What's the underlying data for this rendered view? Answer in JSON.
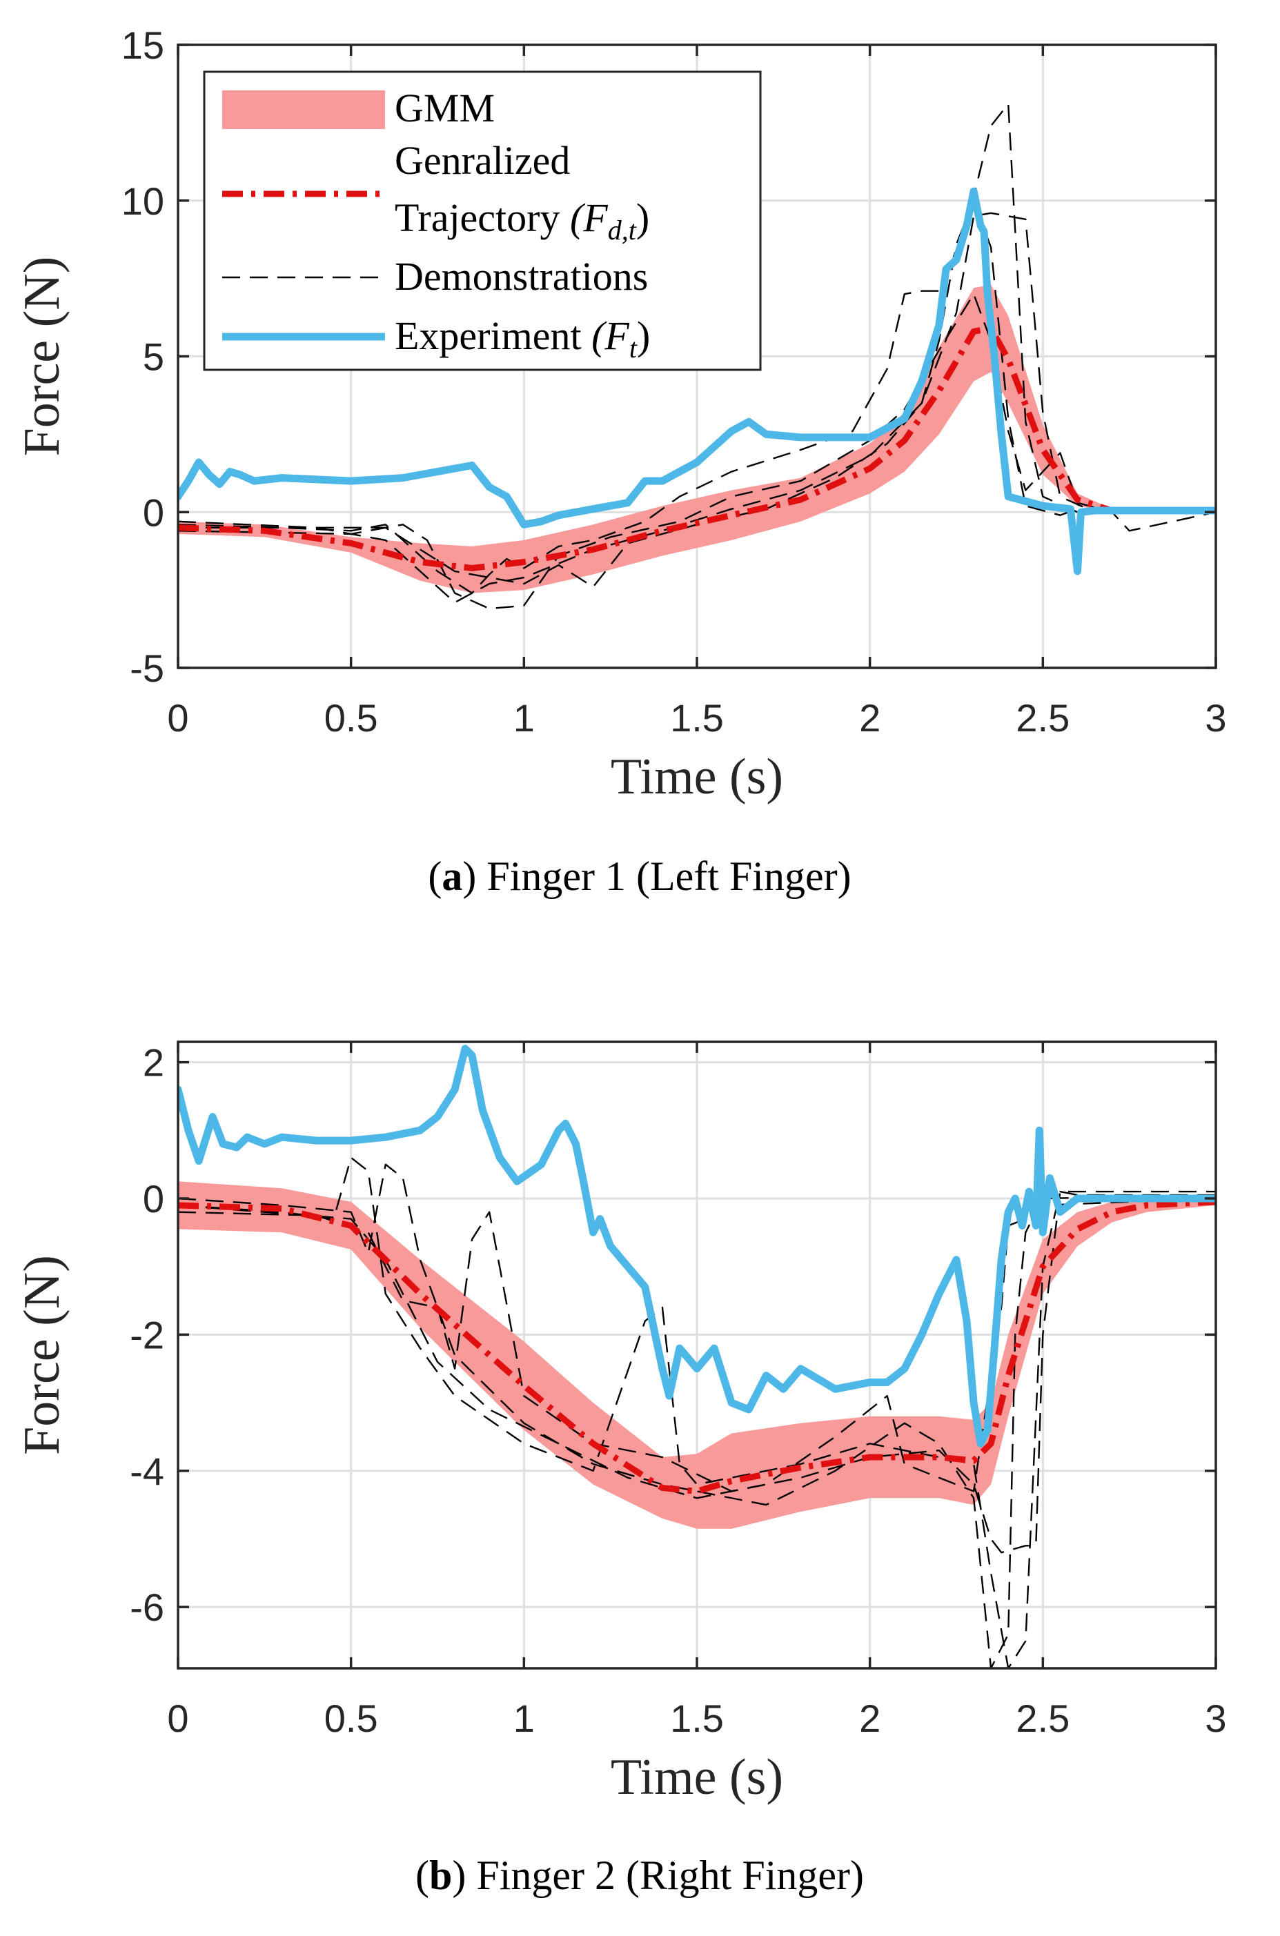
{
  "chart_data": [
    {
      "type": "line",
      "panel_label": "a",
      "caption": "Finger 1 (Left Finger)",
      "xlabel": "Time (s)",
      "ylabel": "Force (N)",
      "xlim": [
        0,
        3
      ],
      "ylim": [
        -5,
        15
      ],
      "xticks": [
        0,
        0.5,
        1,
        1.5,
        2,
        2.5,
        3
      ],
      "xtick_labels": [
        "0",
        "0.5",
        "1",
        "1.5",
        "2",
        "2.5",
        "3"
      ],
      "yticks": [
        -5,
        0,
        5,
        10,
        15
      ],
      "ytick_labels": [
        "-5",
        "0",
        "5",
        "10",
        "15"
      ],
      "grid": true,
      "legend": {
        "position": "top-left",
        "entries": [
          {
            "label": "GMM",
            "style": "band"
          },
          {
            "label": "Genralized",
            "label2": "Trajectory",
            "sym": "(F",
            "sub": "d,t",
            "close": ")",
            "style": "dashdot"
          },
          {
            "label": "Demonstrations",
            "style": "dashed"
          },
          {
            "label": "Experiment",
            "sym": "(F",
            "sub": "t",
            "close": ")",
            "style": "solid"
          }
        ]
      },
      "series": [
        {
          "name": "GMM",
          "type": "band",
          "color": "#f89a9a",
          "x": [
            0,
            0.25,
            0.5,
            0.7,
            0.85,
            1.0,
            1.2,
            1.4,
            1.6,
            1.8,
            2.0,
            2.1,
            2.2,
            2.3,
            2.35,
            2.4,
            2.5,
            2.6,
            2.7,
            3.0
          ],
          "lower": [
            -0.7,
            -0.8,
            -1.3,
            -2.2,
            -2.6,
            -2.5,
            -2.0,
            -1.4,
            -0.9,
            -0.3,
            0.6,
            1.3,
            2.5,
            4.2,
            4.5,
            3.5,
            1.2,
            0.2,
            0.0,
            0.0
          ],
          "upper": [
            -0.3,
            -0.4,
            -0.8,
            -1.0,
            -1.1,
            -0.9,
            -0.4,
            0.2,
            0.7,
            1.1,
            2.2,
            3.2,
            5.3,
            7.2,
            7.3,
            6.3,
            2.8,
            0.6,
            0.1,
            0.1
          ]
        },
        {
          "name": "Genralized Trajectory (F_d,t)",
          "type": "line",
          "color": "#e01010",
          "x": [
            0,
            0.25,
            0.5,
            0.7,
            0.85,
            1.0,
            1.2,
            1.4,
            1.6,
            1.8,
            2.0,
            2.1,
            2.2,
            2.3,
            2.35,
            2.4,
            2.5,
            2.6,
            2.7,
            3.0
          ],
          "y": [
            -0.5,
            -0.6,
            -1.0,
            -1.6,
            -1.8,
            -1.6,
            -1.2,
            -0.6,
            -0.1,
            0.4,
            1.4,
            2.3,
            3.9,
            5.8,
            5.9,
            4.9,
            2.0,
            0.4,
            0.05,
            0.05
          ]
        },
        {
          "name": "Demonstrations",
          "type": "line",
          "color": "#000000",
          "traces": [
            {
              "x": [
                0,
                0.3,
                0.5,
                0.6,
                0.65,
                0.75,
                0.85,
                0.9,
                0.95,
                1.0,
                1.1,
                1.2,
                1.35,
                1.45,
                1.6,
                1.8,
                1.95,
                2.05,
                2.1,
                2.15,
                2.2,
                2.28,
                2.35,
                2.4,
                2.45,
                2.5,
                2.6,
                2.75,
                3.0
              ],
              "y": [
                -0.4,
                -0.5,
                -0.6,
                -0.4,
                -0.9,
                -1.9,
                -2.6,
                -2.0,
                -1.5,
                -1.8,
                -1.1,
                -0.9,
                -0.3,
                0.5,
                1.3,
                2.0,
                2.6,
                4.6,
                7.0,
                7.1,
                7.1,
                9.2,
                12.4,
                13.1,
                2.9,
                0.5,
                0.0,
                0.0,
                0.0
              ]
            },
            {
              "x": [
                0,
                0.4,
                0.6,
                0.7,
                0.8,
                0.9,
                1.0,
                1.2,
                1.4,
                1.6,
                1.8,
                2.0,
                2.15,
                2.25,
                2.3,
                2.35,
                2.45,
                2.5,
                2.55,
                2.65,
                3.0
              ],
              "y": [
                -0.3,
                -0.5,
                -0.9,
                -1.9,
                -2.9,
                -2.3,
                -2.1,
                -1.2,
                -0.6,
                0.1,
                0.7,
                1.8,
                3.5,
                6.4,
                9.5,
                9.6,
                9.4,
                3.2,
                0.5,
                0.0,
                0.0
              ]
            },
            {
              "x": [
                0,
                0.5,
                0.65,
                0.72,
                0.8,
                0.9,
                1.0,
                1.1,
                1.25,
                1.45,
                1.6,
                1.8,
                2.0,
                2.1,
                2.2,
                2.3,
                2.35,
                2.4,
                2.45,
                2.55,
                2.6,
                2.7,
                2.75,
                3.0
              ],
              "y": [
                -0.6,
                -0.7,
                -0.4,
                -0.9,
                -2.6,
                -3.1,
                -3.0,
                -1.4,
                -0.8,
                -0.3,
                0.5,
                1.0,
                2.3,
                3.3,
                5.2,
                7.0,
                5.5,
                2.6,
                0.7,
                1.9,
                0.3,
                0.0,
                -0.6,
                0.0
              ]
            },
            {
              "x": [
                0,
                0.6,
                0.8,
                1.0,
                1.1,
                1.2,
                1.3,
                1.5,
                1.7,
                1.9,
                2.05,
                2.15,
                2.2,
                2.25,
                2.3,
                2.35,
                2.4,
                2.45,
                2.55,
                2.6,
                2.7,
                3.0
              ],
              "y": [
                -0.5,
                -0.5,
                -1.9,
                -2.3,
                -1.7,
                -2.4,
                -1.0,
                -0.4,
                0.1,
                1.1,
                2.2,
                3.5,
                5.5,
                8.6,
                10.0,
                8.5,
                3.0,
                0.2,
                -0.1,
                0.1,
                0.0,
                0.0
              ]
            }
          ]
        },
        {
          "name": "Experiment (F_t)",
          "type": "line",
          "color": "#4db8e8",
          "x": [
            0,
            0.03,
            0.06,
            0.09,
            0.12,
            0.15,
            0.18,
            0.22,
            0.3,
            0.5,
            0.65,
            0.8,
            0.85,
            0.9,
            0.95,
            1.0,
            1.05,
            1.1,
            1.2,
            1.3,
            1.35,
            1.4,
            1.5,
            1.6,
            1.65,
            1.7,
            1.8,
            2.0,
            2.1,
            2.15,
            2.2,
            2.22,
            2.25,
            2.28,
            2.3,
            2.32,
            2.33,
            2.34,
            2.36,
            2.38,
            2.4,
            2.5,
            2.58,
            2.6,
            2.61,
            2.65,
            3.0
          ],
          "y": [
            0.5,
            1.0,
            1.6,
            1.2,
            0.9,
            1.3,
            1.2,
            1.0,
            1.1,
            1.0,
            1.1,
            1.4,
            1.5,
            0.8,
            0.5,
            -0.4,
            -0.3,
            -0.1,
            0.1,
            0.3,
            1.0,
            1.0,
            1.6,
            2.6,
            2.9,
            2.5,
            2.4,
            2.4,
            3.0,
            4.2,
            6.0,
            7.8,
            8.1,
            9.2,
            10.3,
            9.2,
            9.0,
            7.0,
            5.0,
            2.5,
            0.5,
            0.2,
            0.1,
            -1.9,
            0.0,
            0.05,
            0.05
          ]
        }
      ]
    },
    {
      "type": "line",
      "panel_label": "b",
      "caption": "Finger 2 (Right Finger)",
      "xlabel": "Time (s)",
      "ylabel": "Force (N)",
      "xlim": [
        0,
        3
      ],
      "ylim": [
        -6.9,
        2.3
      ],
      "xticks": [
        0,
        0.5,
        1,
        1.5,
        2,
        2.5,
        3
      ],
      "xtick_labels": [
        "0",
        "0.5",
        "1",
        "1.5",
        "2",
        "2.5",
        "3"
      ],
      "yticks": [
        -6,
        -4,
        -2,
        0,
        2
      ],
      "ytick_labels": [
        "-6",
        "-4",
        "-2",
        "0",
        "2"
      ],
      "grid": true,
      "series": [
        {
          "name": "GMM",
          "type": "band",
          "color": "#f89a9a",
          "x": [
            0,
            0.3,
            0.5,
            0.7,
            1.0,
            1.2,
            1.4,
            1.5,
            1.6,
            1.8,
            2.0,
            2.2,
            2.3,
            2.35,
            2.4,
            2.5,
            2.6,
            2.7,
            2.8,
            3.0
          ],
          "lower": [
            -0.45,
            -0.5,
            -0.75,
            -1.9,
            -3.4,
            -4.2,
            -4.7,
            -4.85,
            -4.85,
            -4.6,
            -4.4,
            -4.4,
            -4.5,
            -4.2,
            -3.2,
            -1.4,
            -0.7,
            -0.35,
            -0.2,
            -0.1
          ],
          "upper": [
            0.25,
            0.15,
            -0.05,
            -0.9,
            -2.1,
            -3.0,
            -3.8,
            -3.75,
            -3.45,
            -3.3,
            -3.2,
            -3.2,
            -3.25,
            -3.0,
            -2.0,
            -0.6,
            -0.2,
            -0.05,
            0.0,
            0.0
          ]
        },
        {
          "name": "Genralized Trajectory (F_d,t)",
          "type": "line",
          "color": "#e01010",
          "x": [
            0,
            0.3,
            0.5,
            0.7,
            1.0,
            1.2,
            1.4,
            1.5,
            1.6,
            1.8,
            2.0,
            2.2,
            2.3,
            2.35,
            2.4,
            2.5,
            2.6,
            2.7,
            2.8,
            3.0
          ],
          "y": [
            -0.1,
            -0.15,
            -0.4,
            -1.4,
            -2.75,
            -3.6,
            -4.25,
            -4.3,
            -4.15,
            -3.95,
            -3.8,
            -3.8,
            -3.85,
            -3.6,
            -2.6,
            -1.0,
            -0.45,
            -0.2,
            -0.1,
            -0.05
          ]
        },
        {
          "name": "Demonstrations",
          "type": "line",
          "color": "#000000",
          "traces": [
            {
              "x": [
                0,
                0.3,
                0.45,
                0.5,
                0.55,
                0.6,
                0.7,
                0.8,
                1.0,
                1.2,
                1.35,
                1.4,
                1.45,
                1.5,
                1.6,
                1.8,
                2.0,
                2.2,
                2.3,
                2.35,
                2.4,
                2.45,
                2.5,
                2.55,
                2.6,
                3.0
              ],
              "y": [
                -0.1,
                -0.2,
                -0.3,
                0.6,
                0.4,
                -1.4,
                -2.2,
                -2.9,
                -3.6,
                -4.0,
                -1.8,
                -1.6,
                -3.9,
                -4.2,
                -4.1,
                -3.9,
                -3.6,
                -3.8,
                -3.9,
                -5.5,
                -6.9,
                -6.5,
                -1.0,
                0.1,
                0.05,
                0.05
              ]
            },
            {
              "x": [
                0,
                0.3,
                0.5,
                0.55,
                0.6,
                0.65,
                0.7,
                0.8,
                1.0,
                1.2,
                1.4,
                1.5,
                1.7,
                1.9,
                2.1,
                2.2,
                2.3,
                2.35,
                2.4,
                2.42,
                2.45,
                2.5,
                3.0
              ],
              "y": [
                0.0,
                -0.1,
                -0.2,
                -0.8,
                0.5,
                0.3,
                -0.9,
                -2.3,
                -3.3,
                -3.9,
                -4.2,
                -4.3,
                -4.5,
                -4.0,
                -3.3,
                -3.6,
                -4.4,
                -6.9,
                -6.4,
                -2.0,
                -0.5,
                0.0,
                0.05
              ]
            },
            {
              "x": [
                0,
                0.4,
                0.55,
                0.65,
                0.75,
                0.8,
                0.85,
                0.9,
                1.0,
                1.2,
                1.4,
                1.6,
                1.8,
                2.0,
                2.2,
                2.3,
                2.35,
                2.38,
                2.45,
                2.48,
                2.5,
                2.55,
                2.6,
                3.0
              ],
              "y": [
                -0.2,
                -0.25,
                -0.5,
                -1.5,
                -1.6,
                -2.5,
                -0.6,
                -0.2,
                -2.9,
                -3.6,
                -3.8,
                -4.3,
                -4.1,
                -3.8,
                -3.7,
                -4.2,
                -5.0,
                -5.2,
                -5.1,
                -5.1,
                -2.0,
                0.1,
                0.1,
                0.1
              ]
            },
            {
              "x": [
                0,
                0.5,
                0.6,
                0.75,
                0.9,
                1.1,
                1.3,
                1.5,
                1.7,
                1.9,
                2.05,
                2.1,
                2.2,
                2.3,
                2.35,
                2.38,
                2.4,
                2.45,
                2.5,
                3.0
              ],
              "y": [
                -0.1,
                -0.3,
                -0.9,
                -2.4,
                -3.1,
                -3.6,
                -4.1,
                -4.4,
                -4.2,
                -3.5,
                -2.9,
                -3.9,
                -4.1,
                -4.3,
                -2.6,
                -1.6,
                -0.4,
                -0.3,
                -0.1,
                0.0
              ]
            }
          ]
        },
        {
          "name": "Experiment (F_t)",
          "type": "line",
          "color": "#4db8e8",
          "x": [
            0,
            0.03,
            0.06,
            0.1,
            0.13,
            0.17,
            0.2,
            0.25,
            0.3,
            0.4,
            0.5,
            0.6,
            0.7,
            0.75,
            0.8,
            0.83,
            0.85,
            0.88,
            0.93,
            0.98,
            1.05,
            1.1,
            1.12,
            1.15,
            1.17,
            1.2,
            1.22,
            1.25,
            1.3,
            1.35,
            1.4,
            1.42,
            1.45,
            1.5,
            1.55,
            1.6,
            1.65,
            1.7,
            1.75,
            1.8,
            1.9,
            2.0,
            2.05,
            2.1,
            2.15,
            2.2,
            2.25,
            2.28,
            2.3,
            2.32,
            2.34,
            2.36,
            2.38,
            2.4,
            2.42,
            2.44,
            2.46,
            2.48,
            2.49,
            2.5,
            2.52,
            2.55,
            2.6,
            2.7,
            3.0
          ],
          "y": [
            1.6,
            1.0,
            0.55,
            1.2,
            0.8,
            0.75,
            0.9,
            0.8,
            0.9,
            0.85,
            0.85,
            0.9,
            1.0,
            1.2,
            1.6,
            2.2,
            2.1,
            1.3,
            0.6,
            0.25,
            0.5,
            1.0,
            1.1,
            0.8,
            0.3,
            -0.5,
            -0.3,
            -0.7,
            -1.0,
            -1.3,
            -2.5,
            -2.9,
            -2.2,
            -2.5,
            -2.2,
            -3.0,
            -3.1,
            -2.6,
            -2.8,
            -2.5,
            -2.8,
            -2.7,
            -2.7,
            -2.5,
            -2.0,
            -1.4,
            -0.9,
            -1.8,
            -3.0,
            -3.6,
            -3.4,
            -2.2,
            -0.9,
            -0.2,
            0.0,
            -0.4,
            0.1,
            -0.4,
            1.0,
            -0.5,
            0.3,
            -0.2,
            0.0,
            0.0,
            0.0
          ]
        }
      ]
    }
  ]
}
